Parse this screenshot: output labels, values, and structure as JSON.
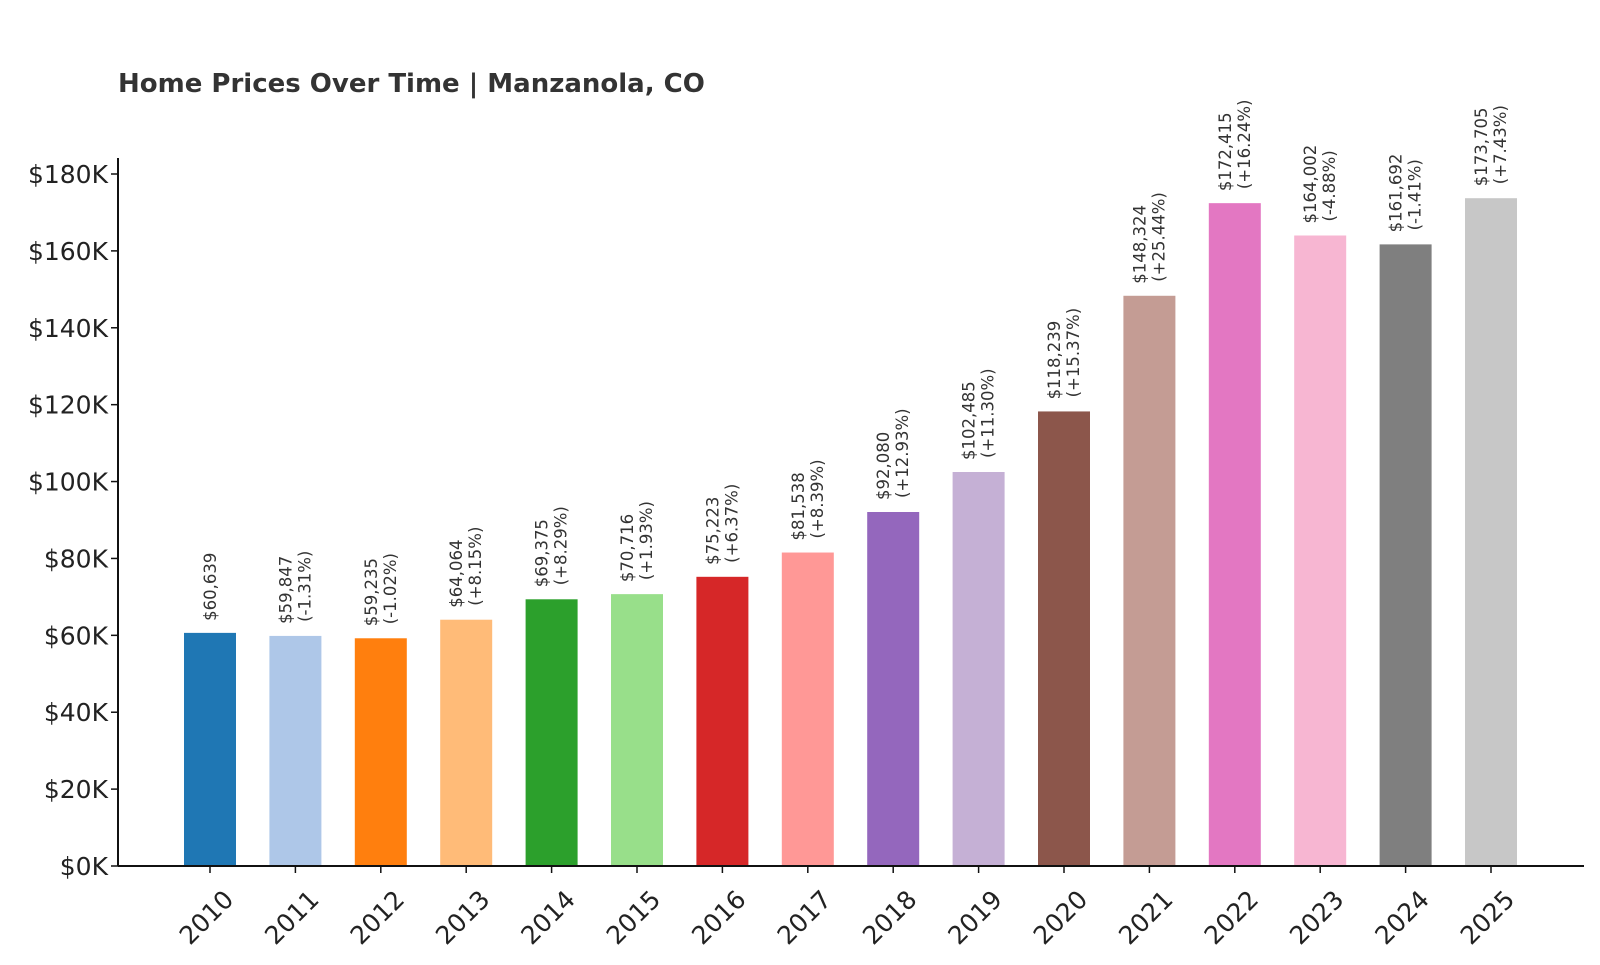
{
  "chart_data": {
    "type": "bar",
    "title": "Home Prices Over Time | Manzanola, CO",
    "xlabel": "",
    "ylabel": "",
    "ylim": [
      0,
      180000
    ],
    "y_ticks": [
      {
        "value": 0,
        "label": "$0K"
      },
      {
        "value": 20000,
        "label": "$20K"
      },
      {
        "value": 40000,
        "label": "$40K"
      },
      {
        "value": 60000,
        "label": "$60K"
      },
      {
        "value": 80000,
        "label": "$80K"
      },
      {
        "value": 100000,
        "label": "$100K"
      },
      {
        "value": 120000,
        "label": "$120K"
      },
      {
        "value": 140000,
        "label": "$140K"
      },
      {
        "value": 160000,
        "label": "$160K"
      },
      {
        "value": 180000,
        "label": "$180K"
      }
    ],
    "grid": false,
    "categories": [
      "2010",
      "2011",
      "2012",
      "2013",
      "2014",
      "2015",
      "2016",
      "2017",
      "2018",
      "2019",
      "2020",
      "2021",
      "2022",
      "2023",
      "2024",
      "2025"
    ],
    "values": [
      60639,
      59847,
      59235,
      64064,
      69375,
      70716,
      75223,
      81538,
      92080,
      102485,
      118239,
      148324,
      172415,
      164002,
      161692,
      173705
    ],
    "value_labels": [
      "$60,639",
      "$59,847",
      "$59,235",
      "$64,064",
      "$69,375",
      "$70,716",
      "$75,223",
      "$81,538",
      "$92,080",
      "$102,485",
      "$118,239",
      "$148,324",
      "$172,415",
      "$164,002",
      "$161,692",
      "$173,705"
    ],
    "change_labels": [
      "",
      "(-1.31%)",
      "(-1.02%)",
      "(+8.15%)",
      "(+8.29%)",
      "(+1.93%)",
      "(+6.37%)",
      "(+8.39%)",
      "(+12.93%)",
      "(+11.30%)",
      "(+15.37%)",
      "(+25.44%)",
      "(+16.24%)",
      "(-4.88%)",
      "(-1.41%)",
      "(+7.43%)"
    ],
    "colors": [
      "#1f77b4",
      "#aec7e8",
      "#ff7f0e",
      "#ffbb78",
      "#2ca02c",
      "#98df8a",
      "#d62728",
      "#ff9896",
      "#9467bd",
      "#c5b0d5",
      "#8c564b",
      "#c49c94",
      "#e377c2",
      "#f7b6d2",
      "#7f7f7f",
      "#c7c7c7"
    ]
  }
}
